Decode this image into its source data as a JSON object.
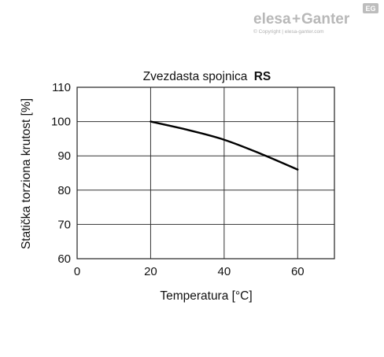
{
  "brand": {
    "name_left": "elesa",
    "plus": "+",
    "name_right": "Ganter",
    "badge": "EG",
    "copyright": "© Copyright | elesa-ganter.com"
  },
  "chart_data": {
    "type": "line",
    "title": "Zvezdasta spojnica",
    "title_bold": "RS",
    "xlabel": "Temperatura [°C]",
    "ylabel": "Statička torziona krutost [%]",
    "xlim": [
      0,
      70
    ],
    "ylim": [
      60,
      110
    ],
    "x_ticks": [
      0,
      20,
      40,
      60
    ],
    "y_ticks": [
      60,
      70,
      80,
      90,
      100,
      110
    ],
    "grid": true,
    "series": [
      {
        "x": [
          20,
          30,
          40,
          50,
          60
        ],
        "values": [
          100,
          97.6,
          94.7,
          90.6,
          86
        ],
        "color": "#000000"
      }
    ]
  }
}
